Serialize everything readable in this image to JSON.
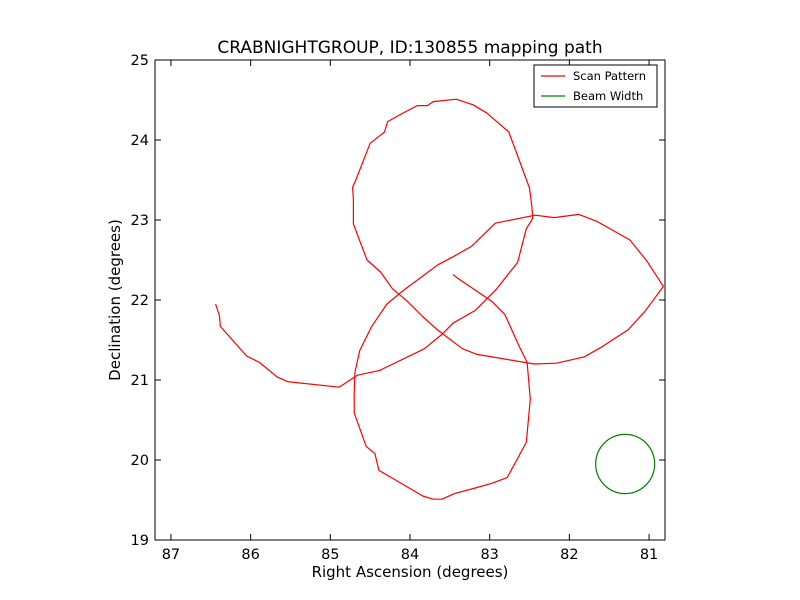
{
  "chart_data": {
    "type": "line",
    "title": "CRABNIGHTGROUP, ID:130855 mapping path",
    "xlabel": "Right Ascension (degrees)",
    "ylabel": "Declination (degrees)",
    "xlim": [
      87.2,
      80.8
    ],
    "ylim": [
      19,
      25
    ],
    "x_ticks": [
      87,
      86,
      85,
      84,
      83,
      82,
      81
    ],
    "y_ticks": [
      19,
      20,
      21,
      22,
      23,
      24,
      25
    ],
    "x_tick_labels": [
      "87",
      "86",
      "85",
      "84",
      "83",
      "82",
      "81"
    ],
    "y_tick_labels": [
      "19",
      "20",
      "21",
      "22",
      "23",
      "24",
      "25"
    ],
    "grid": false,
    "legend_position": "top-right",
    "series": [
      {
        "name": "Scan Pattern",
        "color": "#ff0000",
        "points": [
          [
            86.44,
            21.95
          ],
          [
            86.39,
            21.8
          ],
          [
            86.38,
            21.67
          ],
          [
            86.05,
            21.3
          ],
          [
            85.89,
            21.22
          ],
          [
            85.67,
            21.04
          ],
          [
            85.54,
            20.98
          ],
          [
            84.89,
            20.91
          ],
          [
            84.66,
            21.06
          ],
          [
            84.38,
            21.12
          ],
          [
            83.82,
            21.39
          ],
          [
            83.6,
            21.57
          ],
          [
            83.46,
            21.71
          ],
          [
            83.18,
            21.87
          ],
          [
            82.92,
            22.13
          ],
          [
            82.65,
            22.47
          ],
          [
            82.54,
            22.89
          ],
          [
            82.46,
            23.02
          ],
          [
            82.47,
            23.17
          ],
          [
            82.5,
            23.4
          ],
          [
            82.76,
            24.1
          ],
          [
            83.04,
            24.34
          ],
          [
            83.21,
            24.44
          ],
          [
            83.42,
            24.51
          ],
          [
            83.71,
            24.48
          ],
          [
            83.78,
            24.43
          ],
          [
            83.91,
            24.43
          ],
          [
            84.1,
            24.33
          ],
          [
            84.28,
            24.23
          ],
          [
            84.32,
            24.1
          ],
          [
            84.37,
            24.06
          ],
          [
            84.5,
            23.96
          ],
          [
            84.68,
            23.5
          ],
          [
            84.72,
            23.41
          ],
          [
            84.71,
            23.25
          ],
          [
            84.71,
            22.95
          ],
          [
            84.54,
            22.5
          ],
          [
            84.37,
            22.35
          ],
          [
            84.22,
            22.14
          ],
          [
            84.03,
            21.98
          ],
          [
            83.85,
            21.8
          ],
          [
            83.66,
            21.63
          ],
          [
            83.34,
            21.39
          ],
          [
            83.16,
            21.32
          ],
          [
            82.44,
            21.2
          ],
          [
            82.16,
            21.21
          ],
          [
            81.81,
            21.29
          ],
          [
            81.6,
            21.41
          ],
          [
            81.26,
            21.63
          ],
          [
            81.05,
            21.86
          ],
          [
            80.82,
            22.17
          ],
          [
            81.03,
            22.49
          ],
          [
            81.24,
            22.75
          ],
          [
            81.65,
            22.98
          ],
          [
            81.88,
            23.07
          ],
          [
            82.19,
            23.03
          ],
          [
            82.43,
            23.06
          ],
          [
            82.93,
            22.96
          ],
          [
            83.23,
            22.67
          ],
          [
            83.46,
            22.54
          ],
          [
            83.65,
            22.44
          ],
          [
            83.88,
            22.27
          ],
          [
            84.07,
            22.13
          ],
          [
            84.29,
            21.95
          ],
          [
            84.48,
            21.67
          ],
          [
            84.63,
            21.37
          ],
          [
            84.69,
            21.1
          ],
          [
            84.7,
            20.83
          ],
          [
            84.7,
            20.59
          ],
          [
            84.55,
            20.17
          ],
          [
            84.44,
            20.08
          ],
          [
            84.39,
            19.87
          ],
          [
            84.27,
            19.8
          ],
          [
            83.96,
            19.62
          ],
          [
            83.84,
            19.55
          ],
          [
            83.71,
            19.51
          ],
          [
            83.6,
            19.51
          ],
          [
            83.44,
            19.58
          ],
          [
            83.18,
            19.65
          ],
          [
            82.97,
            19.71
          ],
          [
            82.78,
            19.78
          ],
          [
            82.54,
            20.22
          ],
          [
            82.49,
            20.76
          ],
          [
            82.53,
            21.22
          ],
          [
            82.63,
            21.42
          ],
          [
            82.81,
            21.82
          ],
          [
            82.97,
            21.98
          ],
          [
            83.19,
            22.13
          ],
          [
            83.4,
            22.27
          ],
          [
            83.46,
            22.32
          ]
        ]
      },
      {
        "name": "Beam Width",
        "color": "#008000",
        "shape": "circle",
        "center": [
          81.3,
          19.95
        ],
        "radius_deg": 0.37
      }
    ]
  }
}
